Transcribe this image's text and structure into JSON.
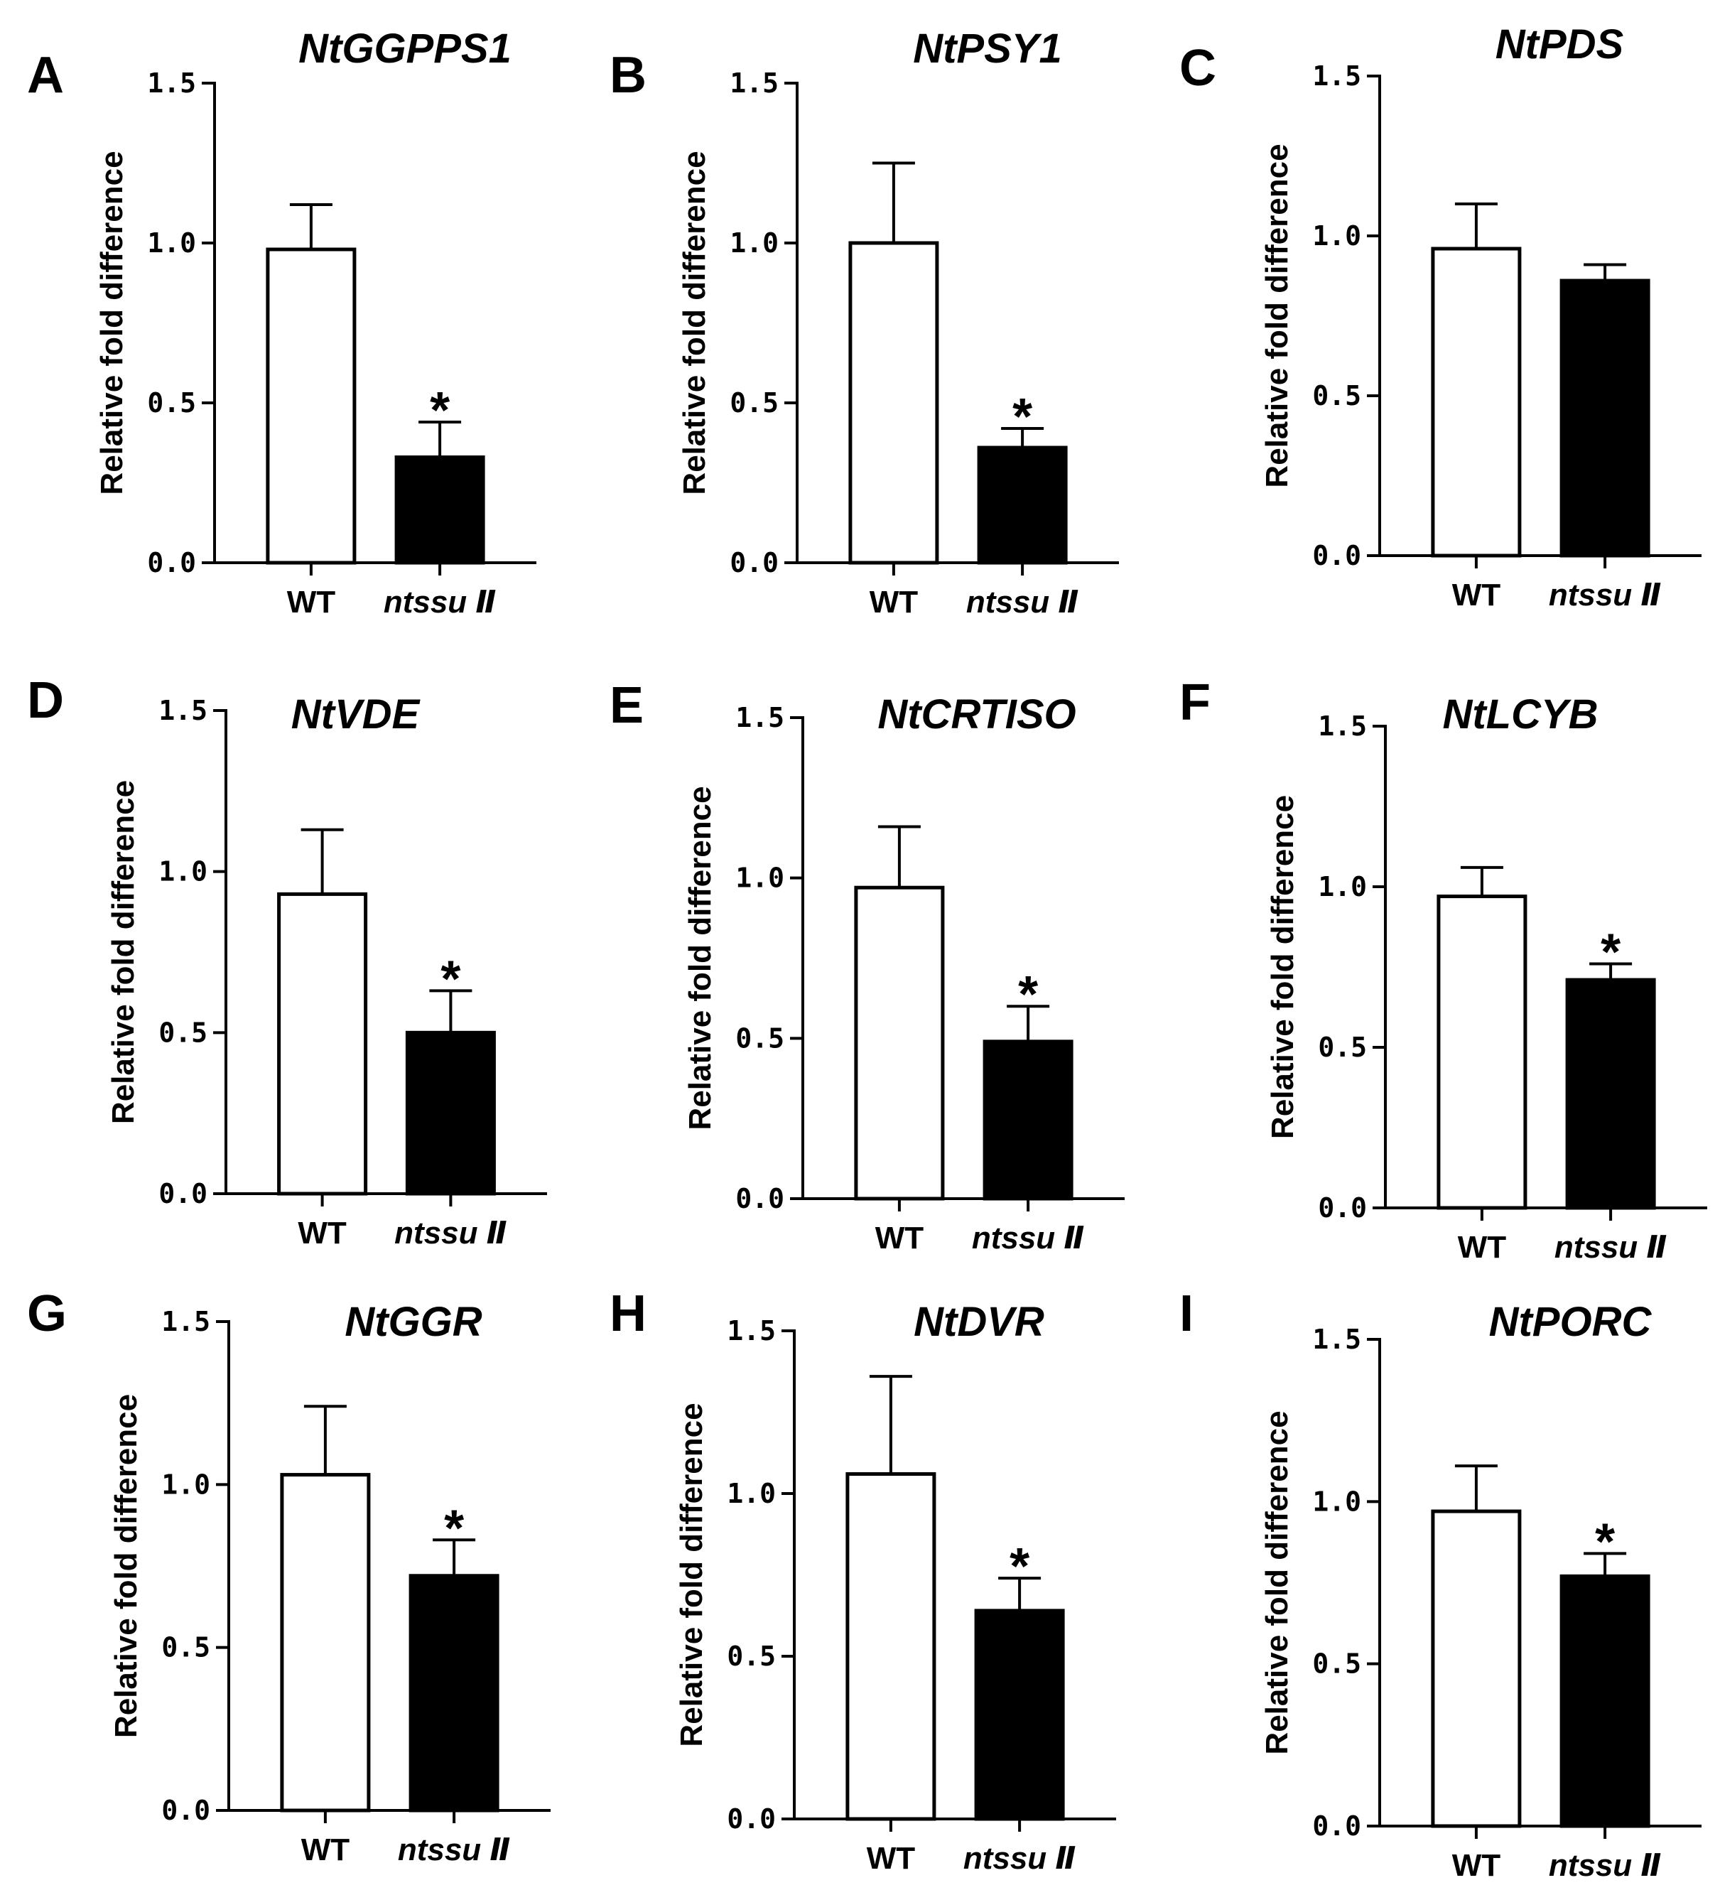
{
  "chart_data": [
    {
      "type": "bar",
      "panel": "A",
      "title": "NtGGPPS1",
      "ylabel": "Relative fold difference",
      "ylim": [
        0,
        1.5
      ],
      "yticks": [
        "0.0",
        "0.5",
        "1.0",
        "1.5"
      ],
      "categories": [
        "WT",
        "ntssu Ⅱ"
      ],
      "values": [
        0.98,
        0.33
      ],
      "errors": [
        0.14,
        0.11
      ],
      "fills": [
        "#ffffff",
        "#000000"
      ],
      "significance": [
        "",
        "*"
      ]
    },
    {
      "type": "bar",
      "panel": "B",
      "title": "NtPSY1",
      "ylabel": "Relative fold difference",
      "ylim": [
        0,
        1.5
      ],
      "yticks": [
        "0.0",
        "0.5",
        "1.0",
        "1.5"
      ],
      "categories": [
        "WT",
        "ntssu Ⅱ"
      ],
      "values": [
        1.0,
        0.36
      ],
      "errors": [
        0.25,
        0.06
      ],
      "fills": [
        "#ffffff",
        "#000000"
      ],
      "significance": [
        "",
        "*"
      ]
    },
    {
      "type": "bar",
      "panel": "C",
      "title": "NtPDS",
      "ylabel": "Relative fold difference",
      "ylim": [
        0,
        1.5
      ],
      "yticks": [
        "0.0",
        "0.5",
        "1.0",
        "1.5"
      ],
      "categories": [
        "WT",
        "ntssu Ⅱ"
      ],
      "values": [
        0.96,
        0.86
      ],
      "errors": [
        0.14,
        0.05
      ],
      "fills": [
        "#ffffff",
        "#000000"
      ],
      "significance": [
        "",
        ""
      ]
    },
    {
      "type": "bar",
      "panel": "D",
      "title": "NtVDE",
      "ylabel": "Relative fold difference",
      "ylim": [
        0,
        1.5
      ],
      "yticks": [
        "0.0",
        "0.5",
        "1.0",
        "1.5"
      ],
      "categories": [
        "WT",
        "ntssu Ⅱ"
      ],
      "values": [
        0.93,
        0.5
      ],
      "errors": [
        0.2,
        0.13
      ],
      "fills": [
        "#ffffff",
        "#000000"
      ],
      "significance": [
        "",
        "*"
      ]
    },
    {
      "type": "bar",
      "panel": "E",
      "title": "NtCRTISO",
      "ylabel": "Relative fold difference",
      "ylim": [
        0,
        1.5
      ],
      "yticks": [
        "0.0",
        "0.5",
        "1.0",
        "1.5"
      ],
      "categories": [
        "WT",
        "ntssu Ⅱ"
      ],
      "values": [
        0.97,
        0.49
      ],
      "errors": [
        0.19,
        0.11
      ],
      "fills": [
        "#ffffff",
        "#000000"
      ],
      "significance": [
        "",
        "*"
      ]
    },
    {
      "type": "bar",
      "panel": "F",
      "title": "NtLCYB",
      "ylabel": "Relative fold difference",
      "ylim": [
        0,
        1.5
      ],
      "yticks": [
        "0.0",
        "0.5",
        "1.0",
        "1.5"
      ],
      "categories": [
        "WT",
        "ntssu Ⅱ"
      ],
      "values": [
        0.97,
        0.71
      ],
      "errors": [
        0.09,
        0.05
      ],
      "fills": [
        "#ffffff",
        "#000000"
      ],
      "significance": [
        "",
        "*"
      ]
    },
    {
      "type": "bar",
      "panel": "G",
      "title": "NtGGR",
      "ylabel": "Relative fold difference",
      "ylim": [
        0,
        1.5
      ],
      "yticks": [
        "0.0",
        "0.5",
        "1.0",
        "1.5"
      ],
      "categories": [
        "WT",
        "ntssu Ⅱ"
      ],
      "values": [
        1.03,
        0.72
      ],
      "errors": [
        0.21,
        0.11
      ],
      "fills": [
        "#ffffff",
        "#000000"
      ],
      "significance": [
        "",
        "*"
      ]
    },
    {
      "type": "bar",
      "panel": "H",
      "title": "NtDVR",
      "ylabel": "Relative fold difference",
      "ylim": [
        0,
        1.5
      ],
      "yticks": [
        "0.0",
        "0.5",
        "1.0",
        "1.5"
      ],
      "categories": [
        "WT",
        "ntssu Ⅱ"
      ],
      "values": [
        1.06,
        0.64
      ],
      "errors": [
        0.3,
        0.1
      ],
      "fills": [
        "#ffffff",
        "#000000"
      ],
      "significance": [
        "",
        "*"
      ]
    },
    {
      "type": "bar",
      "panel": "I",
      "title": "NtPORC",
      "ylabel": "Relative fold difference",
      "ylim": [
        0,
        1.5
      ],
      "yticks": [
        "0.0",
        "0.5",
        "1.0",
        "1.5"
      ],
      "categories": [
        "WT",
        "ntssu Ⅱ"
      ],
      "values": [
        0.97,
        0.77
      ],
      "errors": [
        0.14,
        0.07
      ],
      "fills": [
        "#ffffff",
        "#000000"
      ],
      "significance": [
        "",
        "*"
      ]
    }
  ],
  "colors": {
    "axis": "#000000",
    "background": "#ffffff"
  }
}
